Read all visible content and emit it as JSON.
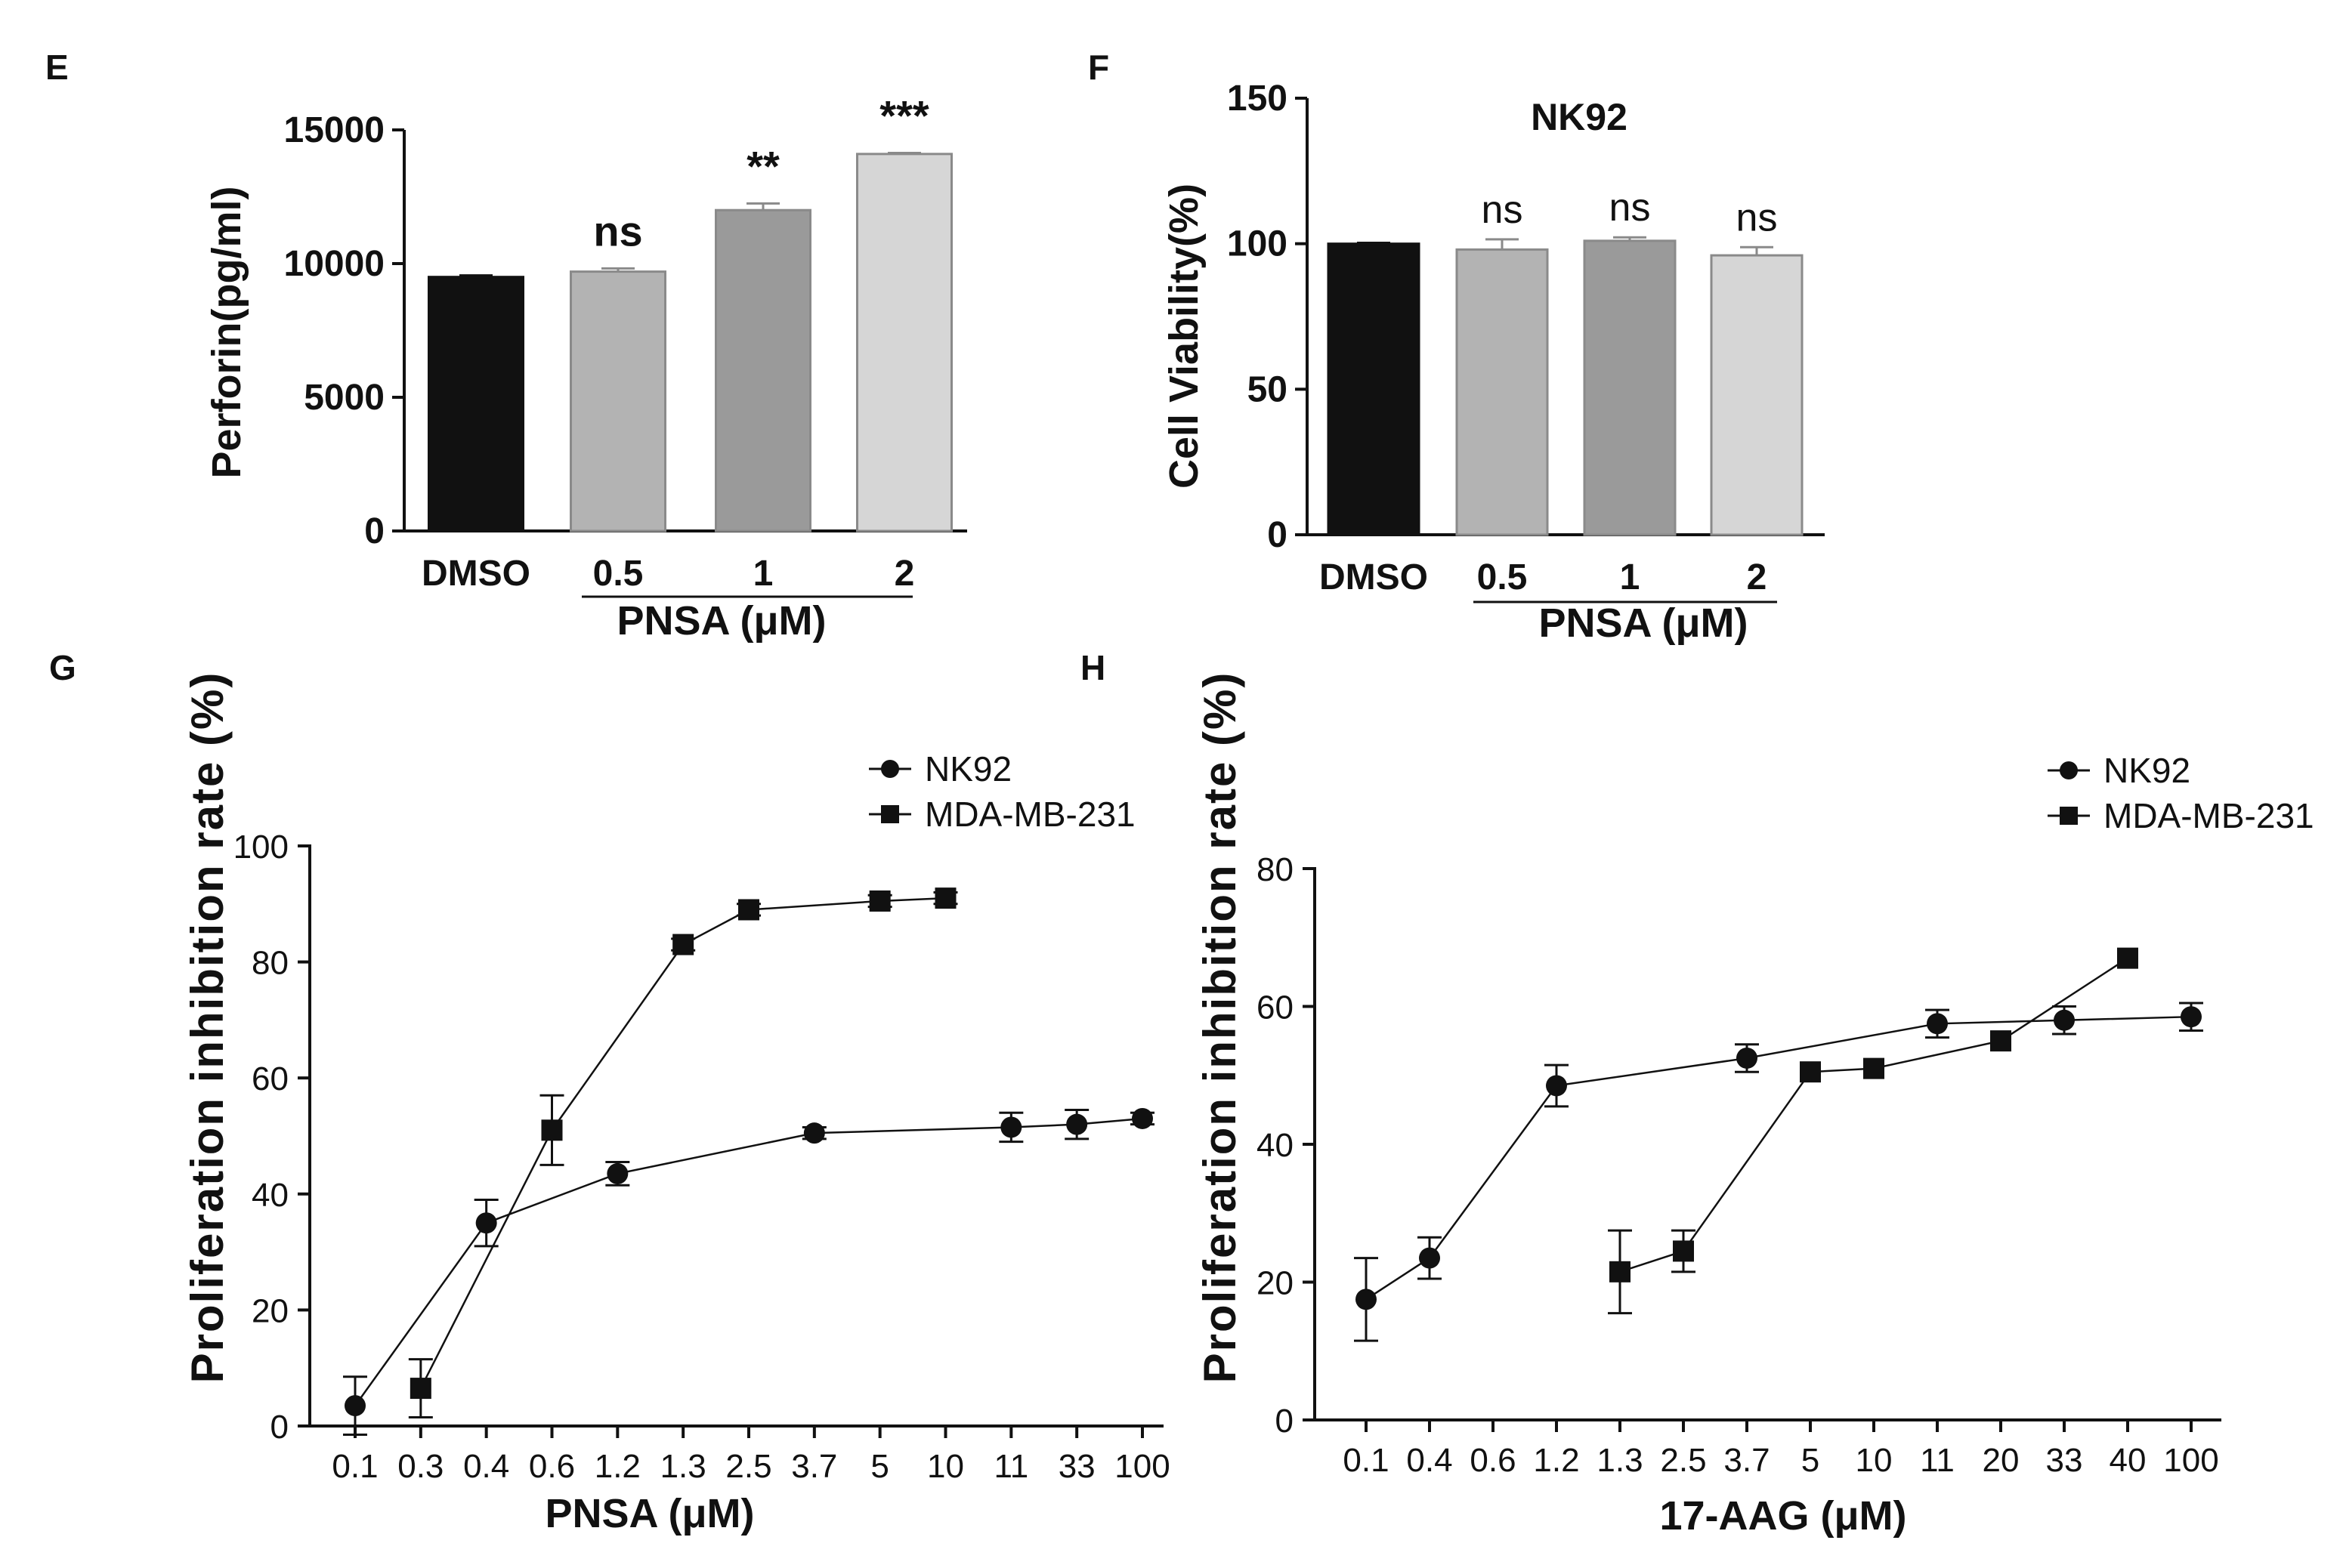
{
  "colors": {
    "axis": "#111111",
    "bar_dmso": "#111111",
    "bar_05": "#b3b3b3",
    "bar_1": "#9a9a9a",
    "bar_2": "#d6d6d6",
    "bar_edge_light": "#8a8a8a",
    "marker": "#111111"
  },
  "chart_data": [
    {
      "panel": "E",
      "type": "bar",
      "title": "",
      "ylabel": "Perforin(pg/ml)",
      "xlabel": "PNSA (μM)",
      "ylim": [
        0,
        15000
      ],
      "yticks": [
        0,
        5000,
        10000,
        15000
      ],
      "categories": [
        "DMSO",
        "0.5",
        "1",
        "2"
      ],
      "values": [
        9500,
        9700,
        12000,
        14100
      ],
      "errors": [
        60,
        120,
        250,
        40
      ],
      "significance": [
        "",
        "ns",
        "**",
        "***"
      ]
    },
    {
      "panel": "F",
      "type": "bar",
      "title": "NK92",
      "ylabel": "Cell Viability(%)",
      "xlabel": "PNSA (μM)",
      "ylim": [
        0,
        150
      ],
      "yticks": [
        0,
        50,
        100,
        150
      ],
      "categories": [
        "DMSO",
        "0.5",
        "1",
        "2"
      ],
      "values": [
        100,
        98,
        101,
        96
      ],
      "errors": [
        0.3,
        3.5,
        1.2,
        2.8
      ],
      "significance": [
        "",
        "ns",
        "ns",
        "ns"
      ]
    },
    {
      "panel": "G",
      "type": "line",
      "xlabel": "PNSA (μM)",
      "ylabel": "Proliferation inhibition rate (%)",
      "ylim": [
        0,
        100
      ],
      "yticks": [
        0,
        20,
        40,
        60,
        80,
        100
      ],
      "categories": [
        "0.1",
        "0.3",
        "0.4",
        "0.6",
        "1.2",
        "1.3",
        "2.5",
        "3.7",
        "5",
        "10",
        "11",
        "33",
        "100"
      ],
      "legend_position": "top-right",
      "series": [
        {
          "name": "NK92",
          "marker": "circle",
          "x": [
            "0.1",
            "0.4",
            "1.2",
            "3.7",
            "11",
            "33",
            "100"
          ],
          "values": [
            3.5,
            35,
            43.5,
            50.5,
            51.5,
            52,
            53
          ],
          "errors": [
            5,
            4,
            2,
            1,
            2.5,
            2.5,
            1
          ]
        },
        {
          "name": "MDA-MB-231",
          "marker": "square",
          "x": [
            "0.3",
            "0.6",
            "1.3",
            "2.5",
            "5",
            "10"
          ],
          "values": [
            6.5,
            51,
            83,
            89,
            90.5,
            91
          ],
          "errors": [
            5,
            6,
            1,
            1,
            1,
            1
          ]
        }
      ]
    },
    {
      "panel": "H",
      "type": "line",
      "xlabel": "17-AAG (μM)",
      "ylabel": "Proliferation inhibition rate (%)",
      "ylim": [
        0,
        80
      ],
      "yticks": [
        0,
        20,
        40,
        60,
        80
      ],
      "categories": [
        "0.1",
        "0.4",
        "0.6",
        "1.2",
        "1.3",
        "2.5",
        "3.7",
        "5",
        "10",
        "11",
        "20",
        "33",
        "40",
        "100"
      ],
      "legend_position": "top-right",
      "series": [
        {
          "name": "NK92",
          "marker": "circle",
          "x": [
            "0.1",
            "0.4",
            "1.2",
            "3.7",
            "11",
            "33",
            "100"
          ],
          "values": [
            17.5,
            23.5,
            48.5,
            52.5,
            57.5,
            58,
            58.5
          ],
          "errors": [
            6,
            3,
            3,
            2,
            2,
            2,
            2
          ]
        },
        {
          "name": "MDA-MB-231",
          "marker": "square",
          "x": [
            "1.3",
            "2.5",
            "5",
            "10",
            "20",
            "40"
          ],
          "values": [
            21.5,
            24.5,
            50.5,
            51,
            55,
            67
          ],
          "errors": [
            6,
            3,
            0.5,
            0.5,
            0.5,
            0.5
          ]
        }
      ]
    }
  ]
}
